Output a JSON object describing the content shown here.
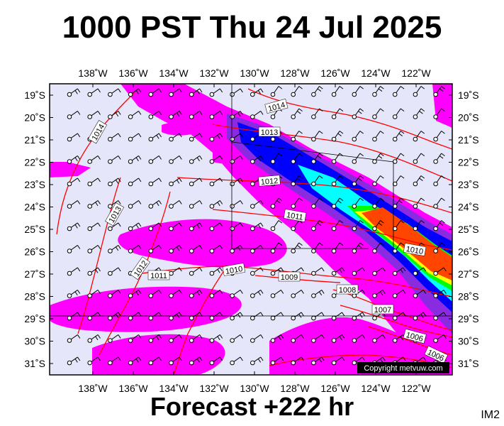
{
  "title": "1000 PST Thu 24 Jul 2025",
  "footer": "Forecast +222 hr",
  "code": "IM2",
  "copyright": "Copyright metvuw.com",
  "map": {
    "lon_range": [
      -140,
      -120.5
    ],
    "lat_range": [
      -31.5,
      -18.5
    ],
    "lon_ticks": [
      "138˚W",
      "136˚W",
      "134˚W",
      "132˚W",
      "130˚W",
      "128˚W",
      "126˚W",
      "124˚W",
      "122˚W"
    ],
    "lat_ticks": [
      "19˚S",
      "20˚S",
      "21˚S",
      "22˚S",
      "23˚S",
      "24˚S",
      "25˚S",
      "26˚S",
      "27˚S",
      "28˚S",
      "29˚S",
      "30˚S",
      "31˚S"
    ],
    "isobar_labels": [
      "1014",
      "1014",
      "1013",
      "1013",
      "1012",
      "1012",
      "1011",
      "1011",
      "1010",
      "1010",
      "1009",
      "1008",
      "1007",
      "1006",
      "1006"
    ],
    "colors": {
      "background": "#e6e6fa",
      "isobar": "#ff0000",
      "rain_light": "#ff00ff",
      "rain_medium": "#8a2be2",
      "rain_heavy": "#0000ff",
      "rain_very_heavy": "#00ffff",
      "rain_extreme": "#00ff00",
      "rain_max": "#ff4500"
    }
  }
}
